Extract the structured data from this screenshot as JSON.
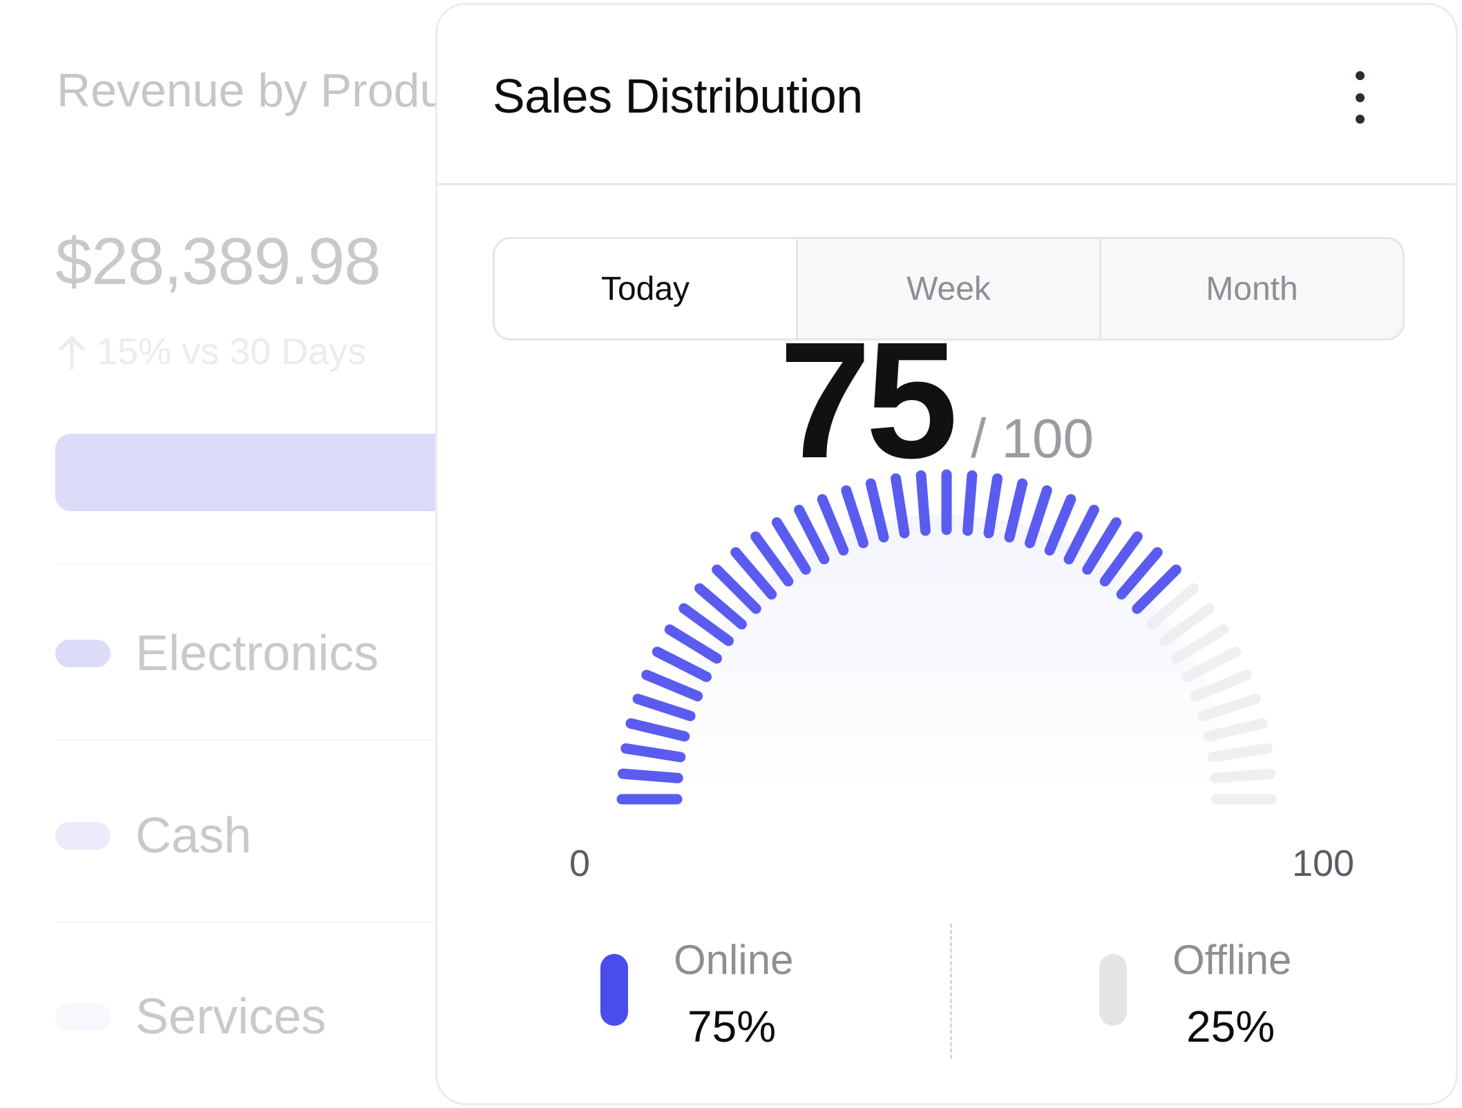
{
  "background_card": {
    "title": "Revenue by Product",
    "amount": "$28,389.98",
    "change": "15% vs 30 Days",
    "items": [
      {
        "label": "Electronics",
        "color": "#dcdcf8"
      },
      {
        "label": "Cash",
        "color": "#ebebfb"
      },
      {
        "label": "Services",
        "color": "#f7f7fd"
      }
    ]
  },
  "card": {
    "title": "Sales Distribution",
    "menu_icon": "more-vertical-icon",
    "tabs": [
      {
        "label": "Today",
        "active": true
      },
      {
        "label": "Week",
        "active": false
      },
      {
        "label": "Month",
        "active": false
      }
    ],
    "gauge": {
      "value": 75,
      "max_label": "/ 100",
      "min": 0,
      "max": 100,
      "min_label": "0",
      "max_tick_label": "100",
      "active_color": "#5a5cf0",
      "inactive_color": "#efeff1"
    },
    "legend": [
      {
        "name": "Online",
        "value": "75%",
        "color": "#4b4cec"
      },
      {
        "name": "Offline",
        "value": "25%",
        "color": "#e4e4e6"
      }
    ]
  }
}
